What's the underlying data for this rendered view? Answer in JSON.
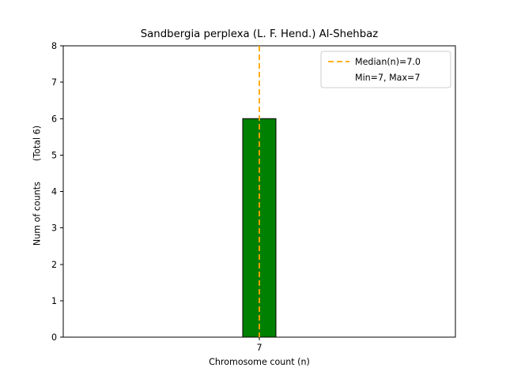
{
  "chart_data": {
    "type": "bar",
    "title": "Sandbergia perplexa (L. F. Hend.) Al-Shehbaz",
    "xlabel": "Chromosome count (n)",
    "ylabel": "Num of counts",
    "ylabel_secondary": "(Total 6)",
    "categories": [
      "7"
    ],
    "values": [
      6
    ],
    "ylim": [
      0,
      8
    ],
    "yticks": [
      0,
      1,
      2,
      3,
      4,
      5,
      6,
      7,
      8
    ],
    "grid": false,
    "bar_color": "#008000",
    "bar_edge_color": "#000000",
    "median": 7.0,
    "min": 7,
    "max": 7,
    "median_line_color": "#FFA500",
    "median_line_style": "dashed",
    "legend": {
      "position": "upper right",
      "entries": [
        {
          "label": "Median(n)=7.0",
          "sample": "dashed-orange-line"
        },
        {
          "label": "Min=7, Max=7",
          "sample": "none"
        }
      ]
    }
  }
}
